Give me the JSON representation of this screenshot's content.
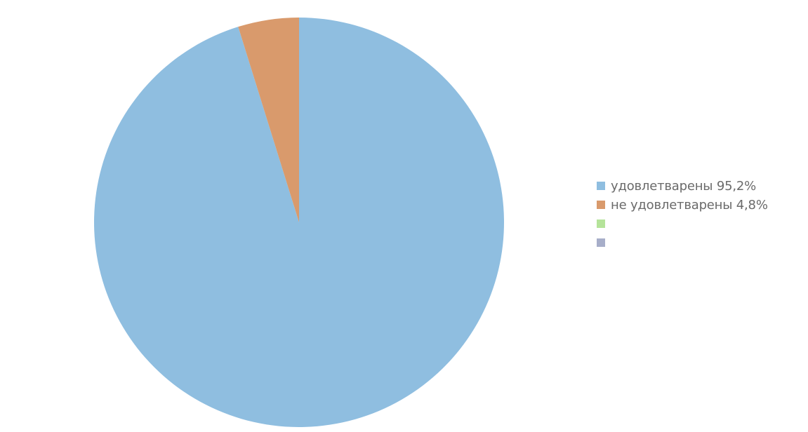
{
  "chart_data": {
    "type": "pie",
    "title": "",
    "start_angle_deg": 0,
    "direction": "clockwise",
    "slices": [
      {
        "label": "удовлетварены 95,2%",
        "value": 95.2,
        "color": "#8fbee0"
      },
      {
        "label": "не удовлетварены 4,8%",
        "value": 4.8,
        "color": "#d99a6c"
      }
    ],
    "legend": {
      "position": "right",
      "items": [
        {
          "label": "удовлетварены 95,2%",
          "color": "#8fbee0"
        },
        {
          "label": "не удовлетварены 4,8%",
          "color": "#d99a6c"
        },
        {
          "label": "",
          "color": "#b5e39a"
        },
        {
          "label": "",
          "color": "#a7aec9"
        }
      ]
    }
  }
}
